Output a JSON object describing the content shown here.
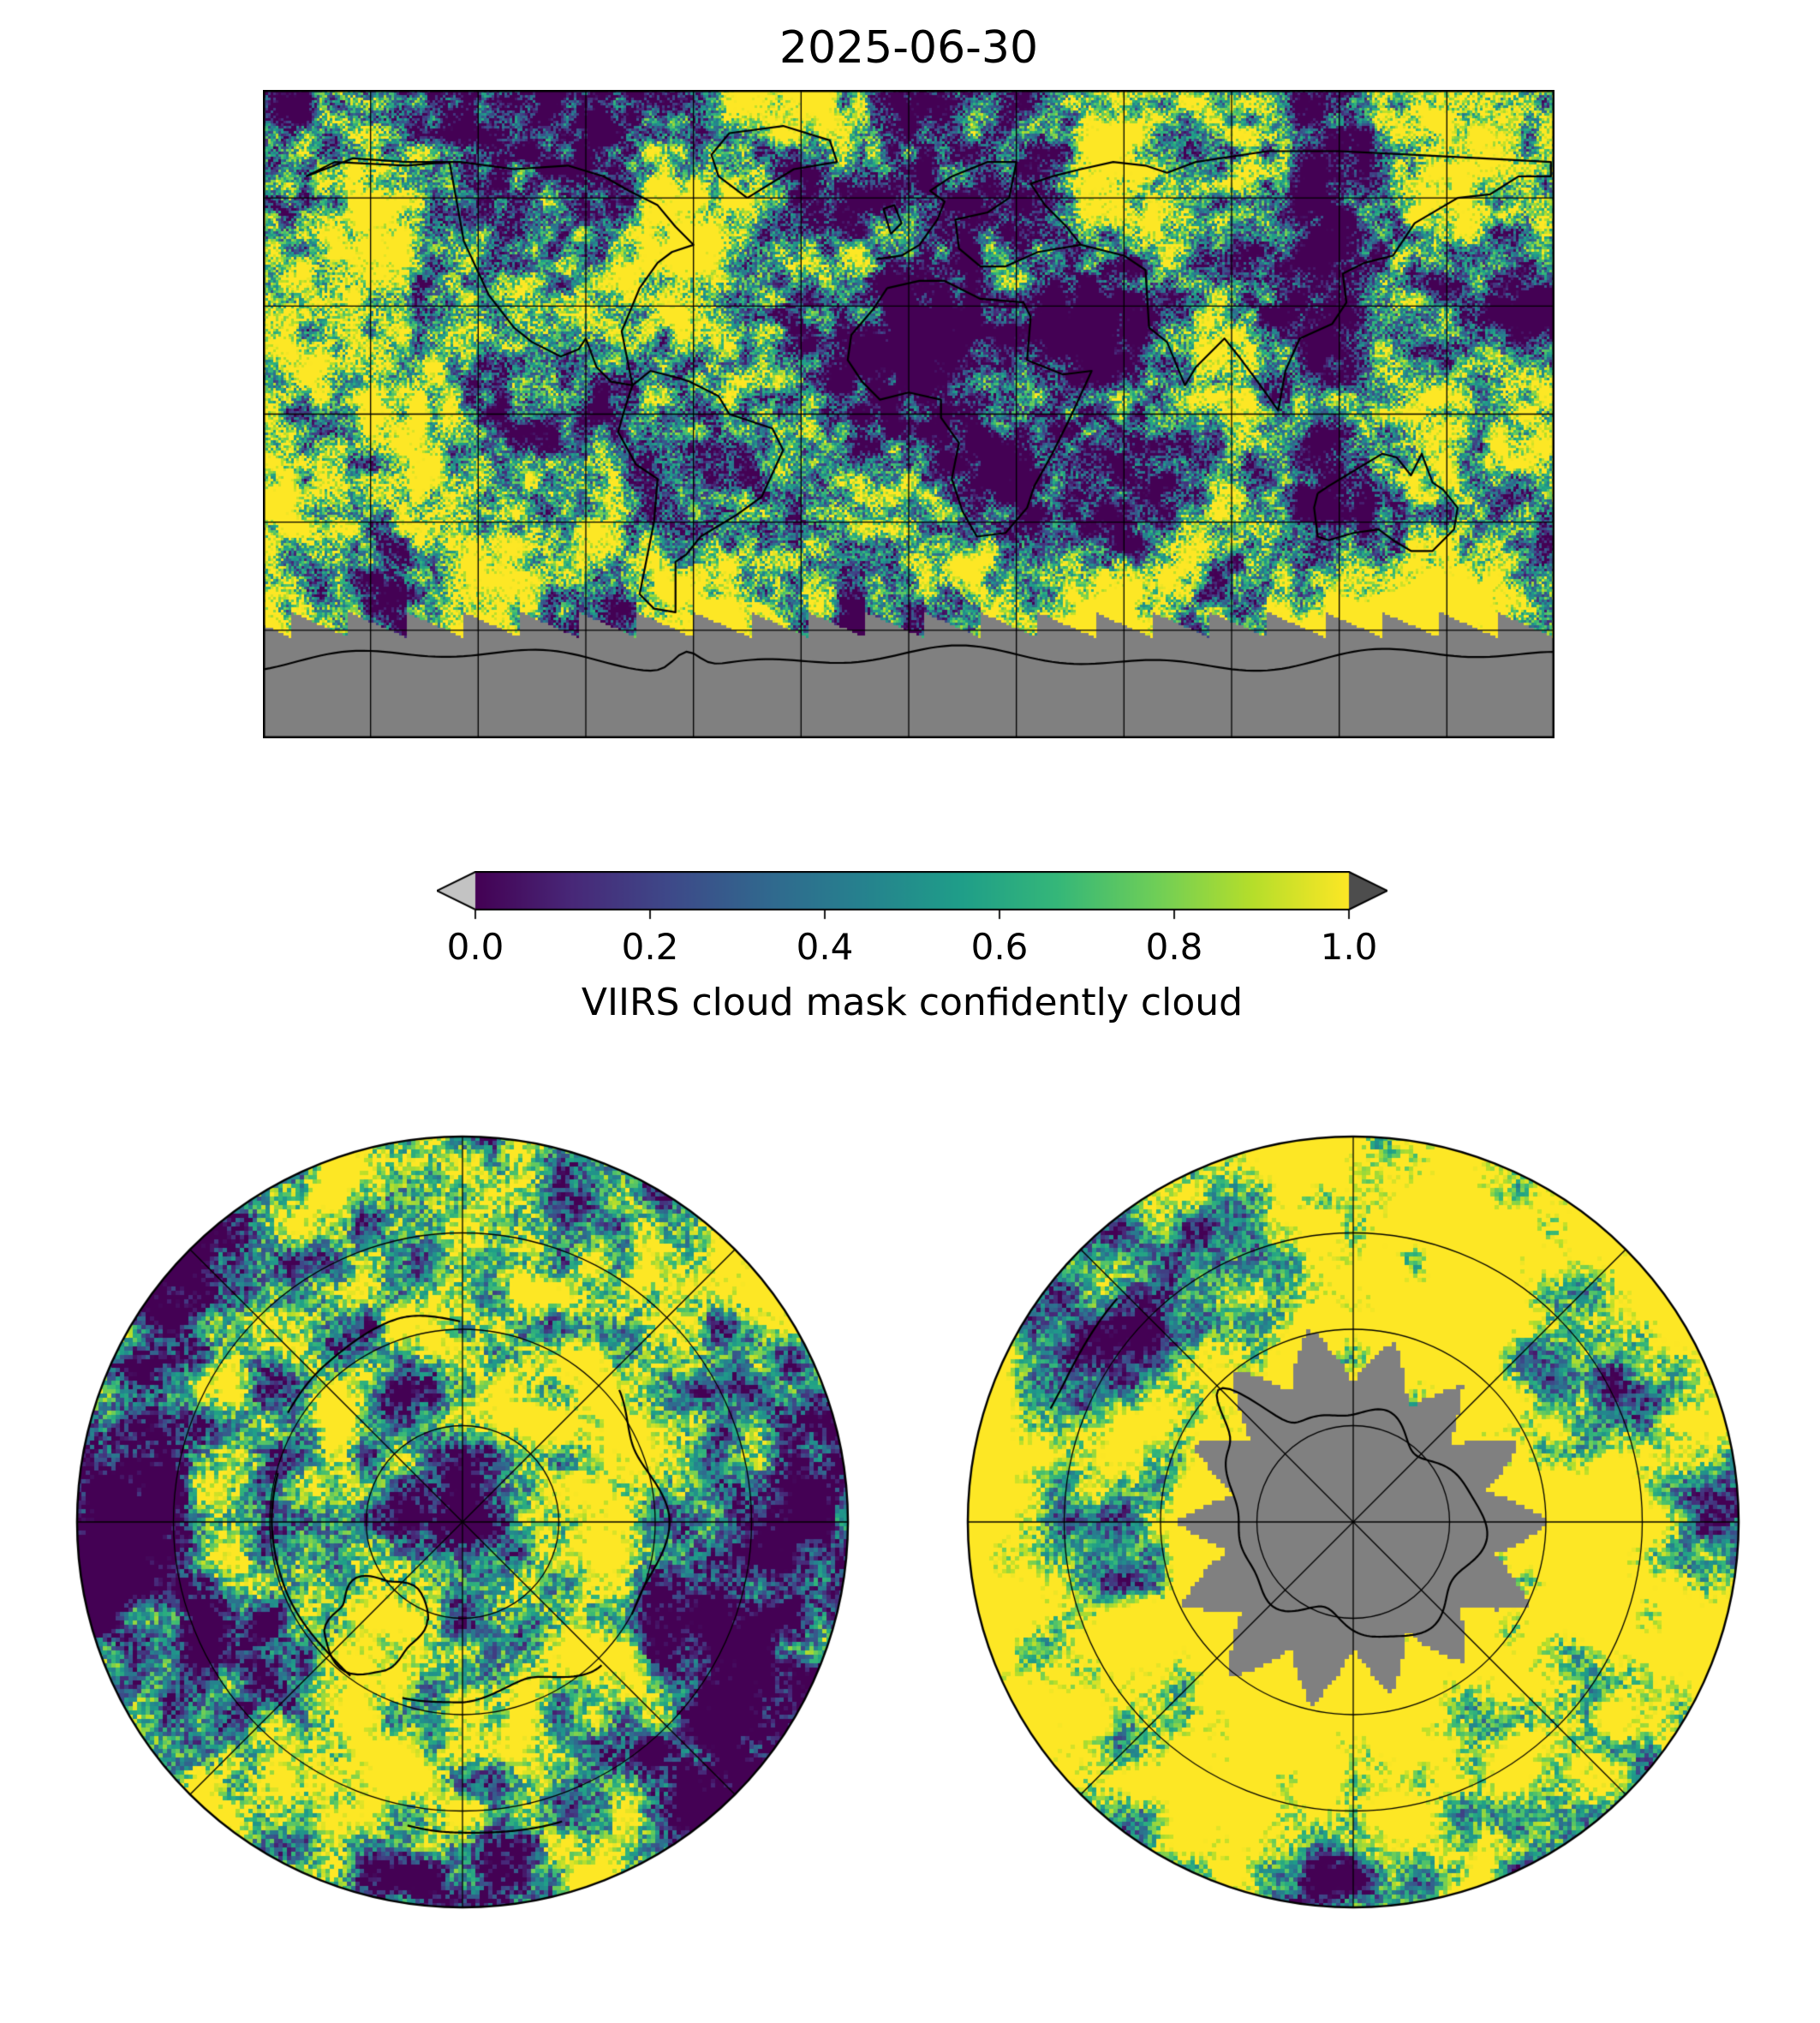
{
  "figure": {
    "title": "2025-06-30",
    "background_color": "#ffffff"
  },
  "colorbar": {
    "label": "VIIRS cloud mask confidently cloud",
    "ticks": [
      "0.0",
      "0.2",
      "0.4",
      "0.6",
      "0.8",
      "1.0"
    ],
    "vmin": 0.0,
    "vmax": 1.0,
    "colormap": "viridis",
    "under_arrow_color": "#c3c3c3",
    "over_arrow_color": "#4d4d4d",
    "outline_color": "#000000",
    "viridis_stops": [
      "#440154",
      "#482878",
      "#3e4989",
      "#31688e",
      "#26828e",
      "#1f9e89",
      "#35b779",
      "#6ece58",
      "#b5de2b",
      "#fde725"
    ]
  },
  "chart_data": {
    "type": "heatmap",
    "title": "2025-06-30",
    "quantity": "VIIRS cloud mask confidently cloud",
    "value_range": [
      0.0,
      1.0
    ],
    "colormap": "viridis",
    "missing_data_color": "#808080",
    "gridline_color": "#000000",
    "panels": [
      {
        "id": "global",
        "projection": "equirectangular",
        "lon_range": [
          -180,
          180
        ],
        "lat_range": [
          -90,
          90
        ],
        "gridline_spacing_deg": 30,
        "missing_region": "high southern latitudes (gray, no data)"
      },
      {
        "id": "north-polar",
        "projection": "north-polar",
        "gridlines": {
          "parallel_circles": 3,
          "meridian_spacing_deg": 45
        }
      },
      {
        "id": "south-polar",
        "projection": "south-polar",
        "gridlines": {
          "parallel_circles": 3,
          "meridian_spacing_deg": 45
        },
        "missing_region": "Antarctic interior (gray, no data)"
      }
    ],
    "coastlines": {
      "north_america": [
        [
          -168,
          66
        ],
        [
          -160,
          70
        ],
        [
          -140,
          69
        ],
        [
          -128,
          70
        ],
        [
          -124,
          48
        ],
        [
          -117,
          33
        ],
        [
          -110,
          24
        ],
        [
          -105,
          20
        ],
        [
          -97,
          16
        ],
        [
          -92,
          18
        ],
        [
          -90,
          21
        ],
        [
          -87,
          13
        ],
        [
          -83,
          9
        ],
        [
          -77,
          8
        ],
        [
          -80,
          23
        ],
        [
          -75,
          35
        ],
        [
          -70,
          42
        ],
        [
          -66,
          45
        ],
        [
          -60,
          47
        ],
        [
          -65,
          52
        ],
        [
          -70,
          58
        ],
        [
          -78,
          62
        ],
        [
          -85,
          66
        ],
        [
          -95,
          69
        ],
        [
          -110,
          68
        ],
        [
          -125,
          70
        ],
        [
          -140,
          70
        ],
        [
          -155,
          71
        ],
        [
          -168,
          66
        ]
      ],
      "greenland": [
        [
          -45,
          60
        ],
        [
          -32,
          68
        ],
        [
          -20,
          70
        ],
        [
          -22,
          76
        ],
        [
          -35,
          80
        ],
        [
          -50,
          78
        ],
        [
          -55,
          72
        ],
        [
          -53,
          66
        ],
        [
          -45,
          60
        ]
      ],
      "south_america": [
        [
          -77,
          8
        ],
        [
          -79,
          2
        ],
        [
          -81,
          -5
        ],
        [
          -76,
          -14
        ],
        [
          -70,
          -18
        ],
        [
          -71,
          -30
        ],
        [
          -73,
          -40
        ],
        [
          -75,
          -50
        ],
        [
          -71,
          -54
        ],
        [
          -65,
          -55
        ],
        [
          -65,
          -41
        ],
        [
          -62,
          -39
        ],
        [
          -58,
          -34
        ],
        [
          -48,
          -28
        ],
        [
          -41,
          -23
        ],
        [
          -35,
          -10
        ],
        [
          -38,
          -4
        ],
        [
          -50,
          0
        ],
        [
          -53,
          5
        ],
        [
          -61,
          9
        ],
        [
          -64,
          10
        ],
        [
          -72,
          12
        ],
        [
          -77,
          8
        ]
      ],
      "africa": [
        [
          -6,
          35
        ],
        [
          3,
          37
        ],
        [
          10,
          37
        ],
        [
          20,
          32
        ],
        [
          32,
          31
        ],
        [
          34,
          27
        ],
        [
          33,
          15
        ],
        [
          43,
          11
        ],
        [
          51,
          12
        ],
        [
          45,
          -1
        ],
        [
          40,
          -11
        ],
        [
          35,
          -20
        ],
        [
          33,
          -26
        ],
        [
          27,
          -33
        ],
        [
          19,
          -34
        ],
        [
          15,
          -27
        ],
        [
          12,
          -18
        ],
        [
          14,
          -8
        ],
        [
          9,
          -1
        ],
        [
          9,
          4
        ],
        [
          0,
          6
        ],
        [
          -8,
          4
        ],
        [
          -13,
          9
        ],
        [
          -17,
          15
        ],
        [
          -16,
          22
        ],
        [
          -10,
          29
        ],
        [
          -6,
          35
        ]
      ],
      "europe": [
        [
          -9,
          43
        ],
        [
          -2,
          44
        ],
        [
          3,
          47
        ],
        [
          8,
          54
        ],
        [
          10,
          59
        ],
        [
          6,
          62
        ],
        [
          12,
          66
        ],
        [
          22,
          70
        ],
        [
          30,
          70
        ],
        [
          28,
          60
        ],
        [
          22,
          56
        ],
        [
          13,
          54
        ],
        [
          14,
          46
        ],
        [
          20,
          41
        ],
        [
          27,
          41
        ],
        [
          36,
          45
        ],
        [
          48,
          47
        ]
      ],
      "britain": [
        [
          -5,
          50
        ],
        [
          -2,
          53
        ],
        [
          -4,
          58
        ],
        [
          -7,
          57
        ],
        [
          -5,
          50
        ]
      ],
      "asia": [
        [
          48,
          47
        ],
        [
          60,
          44
        ],
        [
          66,
          40
        ],
        [
          67,
          24
        ],
        [
          72,
          20
        ],
        [
          77,
          8
        ],
        [
          80,
          13
        ],
        [
          88,
          21
        ],
        [
          92,
          16
        ],
        [
          98,
          8
        ],
        [
          103,
          1
        ],
        [
          105,
          12
        ],
        [
          109,
          21
        ],
        [
          118,
          25
        ],
        [
          122,
          31
        ],
        [
          121,
          39
        ],
        [
          127,
          42
        ],
        [
          135,
          44
        ],
        [
          141,
          53
        ],
        [
          153,
          60
        ],
        [
          162,
          61
        ],
        [
          170,
          66
        ],
        [
          179,
          66
        ],
        [
          179,
          70
        ],
        [
          160,
          71
        ],
        [
          140,
          72
        ],
        [
          120,
          73
        ],
        [
          100,
          73
        ],
        [
          80,
          70
        ],
        [
          72,
          67
        ],
        [
          66,
          69
        ],
        [
          57,
          70
        ],
        [
          48,
          68
        ],
        [
          40,
          66
        ],
        [
          34,
          64
        ],
        [
          38,
          58
        ],
        [
          44,
          52
        ],
        [
          48,
          47
        ]
      ],
      "australia": [
        [
          114,
          -22
        ],
        [
          117,
          -20
        ],
        [
          122,
          -17
        ],
        [
          127,
          -14
        ],
        [
          132,
          -11
        ],
        [
          136,
          -12
        ],
        [
          140,
          -17
        ],
        [
          143,
          -11
        ],
        [
          146,
          -19
        ],
        [
          149,
          -21
        ],
        [
          153,
          -26
        ],
        [
          152,
          -32
        ],
        [
          146,
          -38
        ],
        [
          140,
          -38
        ],
        [
          135,
          -35
        ],
        [
          131,
          -32
        ],
        [
          124,
          -33
        ],
        [
          117,
          -35
        ],
        [
          114,
          -34
        ],
        [
          113,
          -26
        ],
        [
          114,
          -22
        ]
      ]
    }
  }
}
